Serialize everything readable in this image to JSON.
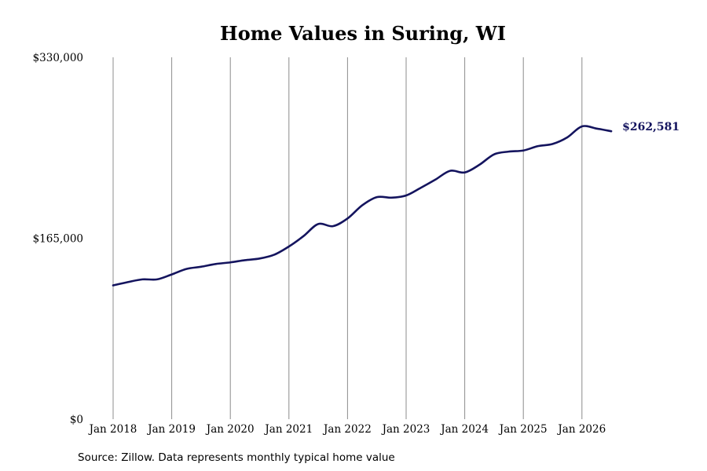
{
  "colors": {
    "line": "#14145e",
    "gridline": "#8c8c8c",
    "text": "#000000"
  },
  "footer": {
    "source": "Source: Zillow. Data represents monthly typical home value"
  },
  "chart_data": {
    "type": "line",
    "title": "Home Values in Suring, WI",
    "xlabel": "",
    "ylabel": "",
    "ylim": [
      0,
      330000
    ],
    "y_ticks": [
      {
        "value": 0,
        "label": "$0"
      },
      {
        "value": 165000,
        "label": "$165,000"
      },
      {
        "value": 330000,
        "label": "$330,000"
      }
    ],
    "x_ticks": [
      {
        "value": "2018-01",
        "label": "Jan 2018"
      },
      {
        "value": "2019-01",
        "label": "Jan 2019"
      },
      {
        "value": "2020-01",
        "label": "Jan 2020"
      },
      {
        "value": "2021-01",
        "label": "Jan 2021"
      },
      {
        "value": "2022-01",
        "label": "Jan 2022"
      },
      {
        "value": "2023-01",
        "label": "Jan 2023"
      },
      {
        "value": "2024-01",
        "label": "Jan 2024"
      },
      {
        "value": "2025-01",
        "label": "Jan 2025"
      },
      {
        "value": "2026-01",
        "label": "Jan 2026"
      }
    ],
    "grid": "vertical",
    "legend": "none",
    "end_label": "$262,581",
    "series": [
      {
        "x": [
          "2018-01",
          "2018-04",
          "2018-07",
          "2018-10",
          "2019-01",
          "2019-04",
          "2019-07",
          "2019-10",
          "2020-01",
          "2020-04",
          "2020-07",
          "2020-10",
          "2021-01",
          "2021-04",
          "2021-07",
          "2021-10",
          "2022-01",
          "2022-04",
          "2022-07",
          "2022-10",
          "2023-01",
          "2023-04",
          "2023-07",
          "2023-10",
          "2024-01",
          "2024-04",
          "2024-07",
          "2024-10",
          "2025-01",
          "2025-04",
          "2025-07",
          "2025-10",
          "2026-01",
          "2026-04",
          "2026-07"
        ],
        "values": [
          122000,
          125000,
          127500,
          127500,
          132000,
          137000,
          139000,
          141500,
          143000,
          145000,
          146500,
          150000,
          157500,
          167000,
          178000,
          176000,
          183000,
          195000,
          202500,
          202000,
          204000,
          211000,
          218500,
          226500,
          225000,
          232000,
          241500,
          244000,
          245000,
          249000,
          251000,
          257000,
          267000,
          265000,
          262581
        ]
      }
    ]
  }
}
